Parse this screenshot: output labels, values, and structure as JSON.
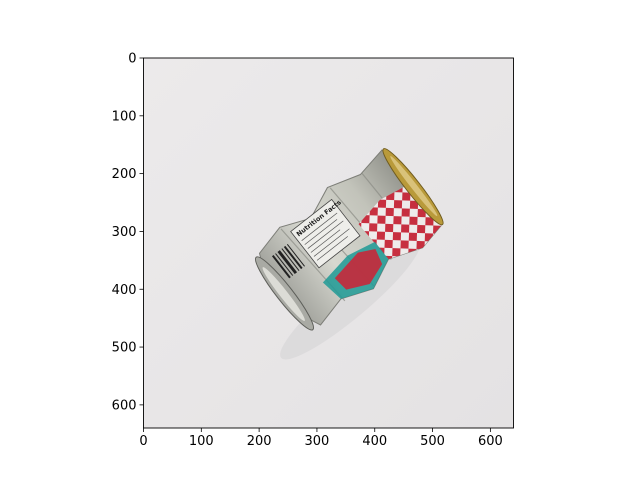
{
  "image": {
    "subject": "crushed aluminum soda can with red and white checkered pattern and nutrition facts label",
    "can_text": "Nutrition Facts",
    "background_color": "#e9e7e8",
    "can_colors": {
      "silver": "#c8c9c2",
      "red": "#c8283a",
      "teal": "#1f9a95",
      "gold": "#b99a3a"
    }
  },
  "axes": {
    "x_ticks": [
      0,
      100,
      200,
      300,
      400,
      500,
      600
    ],
    "y_ticks": [
      0,
      100,
      200,
      300,
      400,
      500,
      600
    ],
    "x_range": [
      0,
      640
    ],
    "y_range": [
      640,
      0
    ],
    "x_tick_labels": [
      "0",
      "100",
      "200",
      "300",
      "400",
      "500",
      "600"
    ],
    "y_tick_labels": [
      "0",
      "100",
      "200",
      "300",
      "400",
      "500",
      "600"
    ]
  }
}
